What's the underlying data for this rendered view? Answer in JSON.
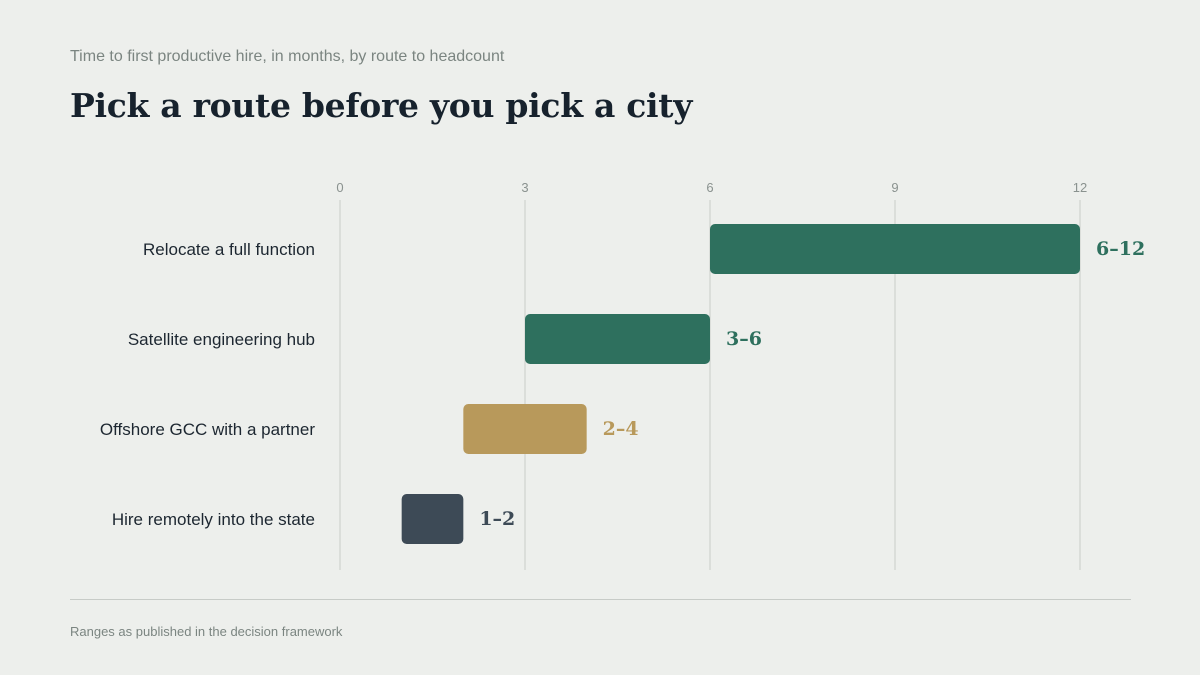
{
  "header": {
    "subtitle": "Time to first productive hire, in months, by route to headcount",
    "title": "Pick a route before you pick a city"
  },
  "footer": {
    "note": "Ranges as published in the decision framework"
  },
  "chart_data": {
    "type": "bar",
    "orientation": "horizontal",
    "title": "Pick a route before you pick a city",
    "subtitle": "Time to first productive hire, in months, by route to headcount",
    "xlim": [
      0,
      12
    ],
    "x_ticks": [
      "0",
      "3",
      "6",
      "9",
      "12"
    ],
    "grid": true,
    "categories": [
      "Relocate a full function",
      "Satellite engineering hub",
      "Offshore GCC with a partner",
      "Hire remotely into the state"
    ],
    "ranges": [
      {
        "start": 6,
        "end": 12,
        "label": "6–12",
        "color": "#2e705e"
      },
      {
        "start": 3,
        "end": 6,
        "label": "3–6",
        "color": "#2e705e"
      },
      {
        "start": 2,
        "end": 4,
        "label": "2–4",
        "color": "#b8995b"
      },
      {
        "start": 1,
        "end": 2,
        "label": "1–2",
        "color": "#3d4a56"
      }
    ],
    "colors": {
      "gridline": "#c9ccc8"
    }
  }
}
